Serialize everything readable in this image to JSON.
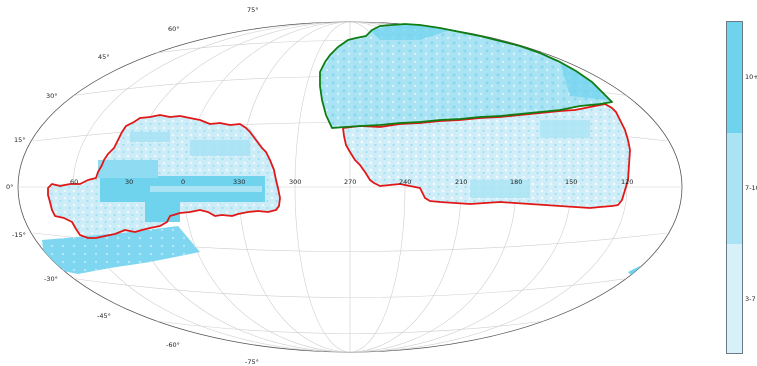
{
  "projection": "aitoff",
  "colors": {
    "dense": "#6fd3ee",
    "medium": "#a9e3f4",
    "sparse": "#d8f1f9",
    "footprint_red": "#e01818",
    "footprint_green": "#0e7d12",
    "graticule": "#c9c9c9",
    "frame": "#555555"
  },
  "longitude_labels": [
    "60",
    "30",
    "0",
    "330",
    "300",
    "270",
    "240",
    "210",
    "180",
    "150",
    "120"
  ],
  "latitude_labels": {
    "north": [
      "75°",
      "60°",
      "45°",
      "30°",
      "15°",
      "0°"
    ],
    "south": [
      "-15°",
      "-30°",
      "-45°",
      "-60°",
      "-75°"
    ]
  },
  "colorbar": {
    "ticks": [
      "10+",
      "7-10",
      "3-7"
    ],
    "colors": [
      "#6fd3ee",
      "#a9e3f4",
      "#d8f1f9"
    ]
  }
}
